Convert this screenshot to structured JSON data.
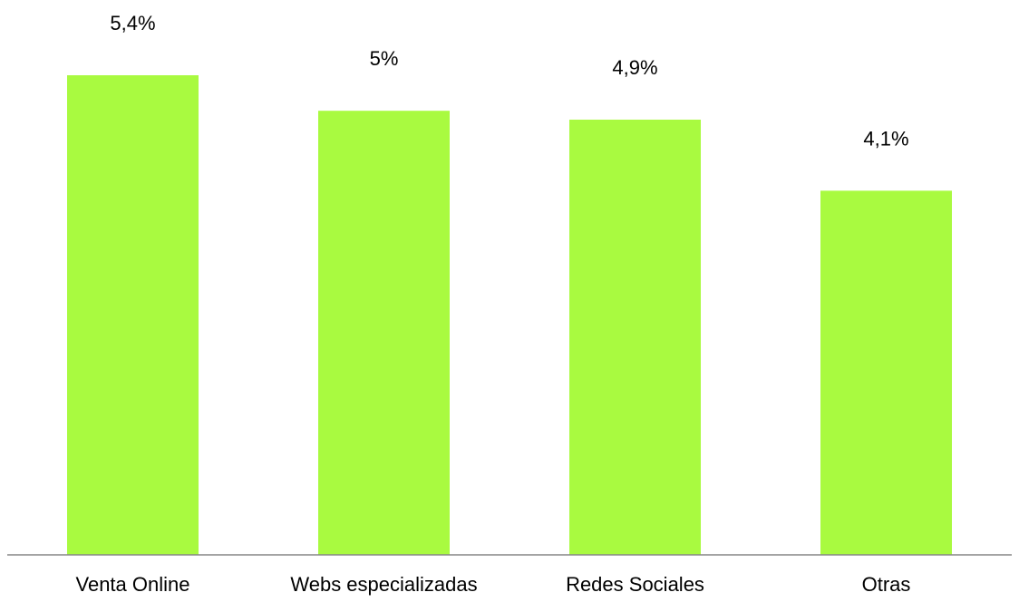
{
  "chart_data": {
    "type": "bar",
    "categories": [
      "Venta Online",
      "Webs especializadas",
      "Redes Sociales",
      "Otras"
    ],
    "values": [
      5.4,
      5.0,
      4.9,
      4.1
    ],
    "data_labels": [
      "5,4%",
      "5%",
      "4,9%",
      "4,1%"
    ],
    "title": "",
    "xlabel": "",
    "ylabel": "",
    "ylim": [
      0,
      5.4
    ],
    "grid": false,
    "legend": "none",
    "colors": {
      "bar": "#A9FA40",
      "axis": "#868686",
      "text": "#000000"
    }
  }
}
